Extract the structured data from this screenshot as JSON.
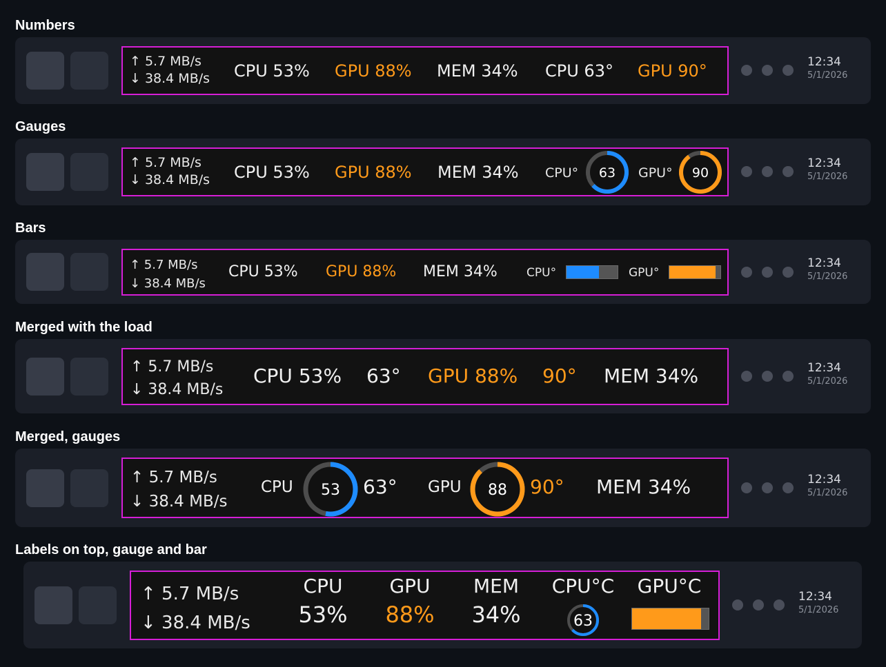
{
  "sections": [
    {
      "title": "Numbers"
    },
    {
      "title": "Gauges"
    },
    {
      "title": "Bars"
    },
    {
      "title": "Merged with the load"
    },
    {
      "title": "Merged, gauges"
    },
    {
      "title": "Labels on top, gauge and bar"
    }
  ],
  "clock": {
    "time": "12:34",
    "date": "5/1/2026"
  },
  "net": {
    "up": "↑ 5.7 MB/s",
    "down": "↓ 38.4 MB/s"
  },
  "stats": {
    "cpu_load": "CPU 53%",
    "gpu_load": "GPU 88%",
    "mem_load": "MEM 34%",
    "cpu_temp": "CPU 63°",
    "gpu_temp": "GPU 90°",
    "cpu_deg_label": "CPU°",
    "gpu_deg_label": "GPU°",
    "cpu_temp_value": "63",
    "gpu_temp_value": "90",
    "cpu_temp_short": "63°",
    "gpu_temp_short": "90°",
    "cpu_label": "CPU",
    "gpu_label": "GPU",
    "mem_label": "MEM",
    "cpu_load_value": "53",
    "gpu_load_value": "88",
    "cpu_pct": "53%",
    "gpu_pct": "88%",
    "mem_pct": "34%",
    "cpu_c_label": "CPU°C",
    "gpu_c_label": "GPU°C"
  },
  "levels": {
    "cpu_load": 0.53,
    "gpu_load": 0.88,
    "cpu_temp": 0.63,
    "gpu_temp": 0.9
  },
  "colors": {
    "accent_blue": "#1e8cff",
    "accent_orange": "#ff9a1a",
    "widget_border": "#d61ed6"
  },
  "icons": {
    "tray_dots": "circle-dot-icon"
  }
}
